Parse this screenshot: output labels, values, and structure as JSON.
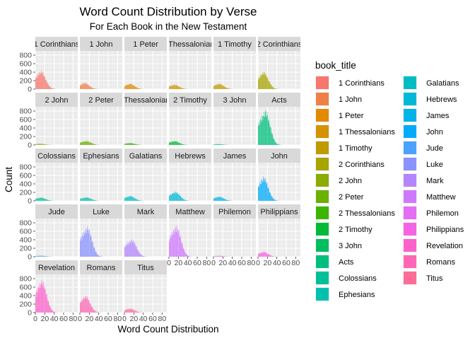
{
  "chart_data": {
    "type": "bar",
    "title": "Word Count Distribution by Verse",
    "subtitle": "For Each Book in the New Testament",
    "xlabel": "Word Count Distribution",
    "ylabel": "Count",
    "legend_title": "book_title",
    "legend_position": "right",
    "grid": true,
    "xlim": [
      0,
      90
    ],
    "ylim": [
      0,
      900
    ],
    "x_tick_labels": [
      "0",
      "20",
      "40",
      "60",
      "80"
    ],
    "x_tick_values": [
      0,
      20,
      40,
      60,
      80
    ],
    "y_tick_labels": [
      "0",
      "200",
      "400",
      "600",
      "800"
    ],
    "y_tick_values": [
      0,
      200,
      400,
      600,
      800
    ],
    "facet_labels": [
      "1 Corinthians",
      "1 John",
      "1 Peter",
      "1 Thessalonians",
      "1 Timothy",
      "2 Corinthians",
      "2 John",
      "2 Peter",
      "2 Thessalonians",
      "2 Timothy",
      "3 John",
      "Acts",
      "Colossians",
      "Ephesians",
      "Galatians",
      "Hebrews",
      "James",
      "John",
      "Jude",
      "Luke",
      "Mark",
      "Matthew",
      "Philemon",
      "Philippians",
      "Revelation",
      "Romans",
      "Titus"
    ],
    "series": [
      {
        "name": "1 Corinthians",
        "color": "#F8766D",
        "peak_x": 12,
        "peak": 400
      },
      {
        "name": "1 John",
        "color": "#EF7F47",
        "peak_x": 10,
        "peak": 140
      },
      {
        "name": "1 Peter",
        "color": "#E38900",
        "peak_x": 12,
        "peak": 120
      },
      {
        "name": "1 Thessalonians",
        "color": "#D49200",
        "peak_x": 12,
        "peak": 100
      },
      {
        "name": "1 Timothy",
        "color": "#C09B00",
        "peak_x": 12,
        "peak": 120
      },
      {
        "name": "2 Corinthians",
        "color": "#A8A400",
        "peak_x": 12,
        "peak": 380
      },
      {
        "name": "2 John",
        "color": "#8CAB00",
        "peak_x": 10,
        "peak": 30
      },
      {
        "name": "2 Peter",
        "color": "#6BB100",
        "peak_x": 14,
        "peak": 90
      },
      {
        "name": "2 Thessalonians",
        "color": "#3BB600",
        "peak_x": 12,
        "peak": 45
      },
      {
        "name": "2 Timothy",
        "color": "#00BA38",
        "peak_x": 12,
        "peak": 90
      },
      {
        "name": "3 John",
        "color": "#00BD5F",
        "peak_x": 10,
        "peak": 20
      },
      {
        "name": "Acts",
        "color": "#00BF7D",
        "peak_x": 16,
        "peak": 750
      },
      {
        "name": "Colossians",
        "color": "#00C097",
        "peak_x": 12,
        "peak": 75
      },
      {
        "name": "Ephesians",
        "color": "#00C0B0",
        "peak_x": 14,
        "peak": 80
      },
      {
        "name": "Galatians",
        "color": "#00BDC5",
        "peak_x": 12,
        "peak": 110
      },
      {
        "name": "Hebrews",
        "color": "#00B9D8",
        "peak_x": 14,
        "peak": 200
      },
      {
        "name": "James",
        "color": "#00B3E9",
        "peak_x": 12,
        "peak": 95
      },
      {
        "name": "John",
        "color": "#00ABFD",
        "peak_x": 12,
        "peak": 520
      },
      {
        "name": "Jude",
        "color": "#4BA1FF",
        "peak_x": 12,
        "peak": 25
      },
      {
        "name": "Luke",
        "color": "#8B93FF",
        "peak_x": 16,
        "peak": 650
      },
      {
        "name": "Mark",
        "color": "#B385FF",
        "peak_x": 16,
        "peak": 380
      },
      {
        "name": "Matthew",
        "color": "#CF78FF",
        "peak_x": 16,
        "peak": 670
      },
      {
        "name": "Philemon",
        "color": "#E56CF4",
        "peak_x": 12,
        "peak": 22
      },
      {
        "name": "Philippians",
        "color": "#F464E2",
        "peak_x": 12,
        "peak": 110
      },
      {
        "name": "Revelation",
        "color": "#FE61CC",
        "peak_x": 14,
        "peak": 700
      },
      {
        "name": "Romans",
        "color": "#FF67B4",
        "peak_x": 12,
        "peak": 370
      },
      {
        "name": "Titus",
        "color": "#FF6C98",
        "peak_x": 12,
        "peak": 90
      }
    ]
  }
}
